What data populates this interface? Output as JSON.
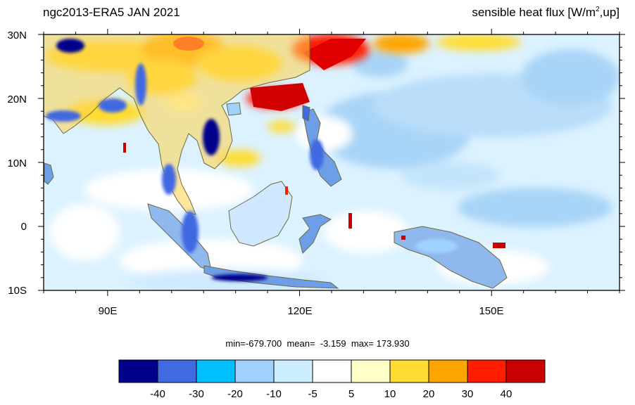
{
  "title_left": "ngc2013-ERA5  JAN 2021",
  "title_right_prefix": "sensible heat flux [W/m",
  "title_right_sup": "2",
  "title_right_suffix": ",up]",
  "lat_labels": [
    "30N",
    "20N",
    "10N",
    "0",
    "10S"
  ],
  "lon_labels": [
    "90E",
    "120E",
    "150E"
  ],
  "stats": "min=-679.700  mean=  -3.159  max= 173.930",
  "colorbar": {
    "colors": [
      "#00008b",
      "#4169e1",
      "#00bfff",
      "#a0d2ff",
      "#cceeff",
      "#ffffff",
      "#ffffc8",
      "#ffdc32",
      "#ffa500",
      "#ff1e00",
      "#c80000"
    ],
    "labels": [
      "-40",
      "-30",
      "-20",
      "-10",
      "-5",
      "5",
      "10",
      "20",
      "30",
      "40"
    ]
  },
  "map_extent": {
    "lon": [
      80,
      170
    ],
    "lat": [
      -10,
      30
    ]
  }
}
